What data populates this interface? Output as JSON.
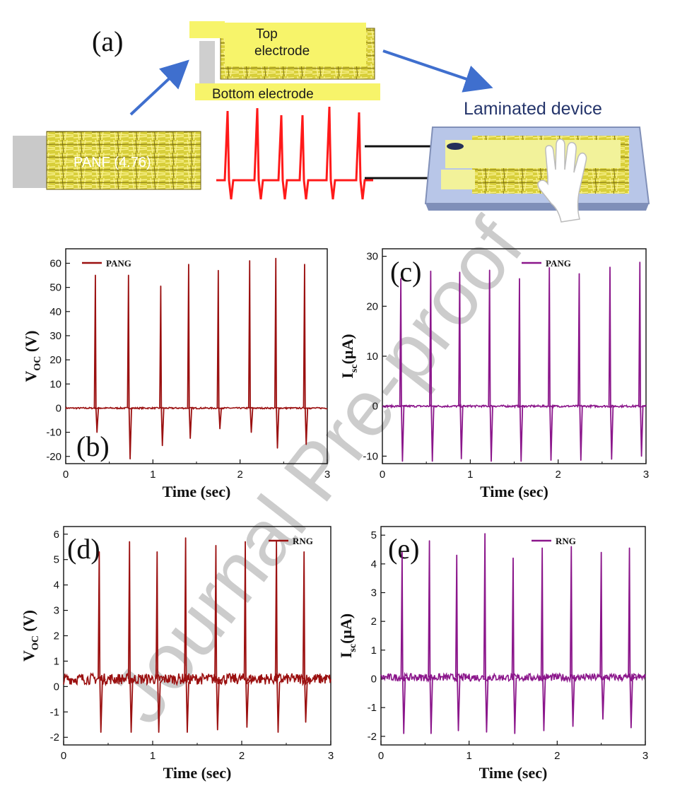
{
  "panel_a": {
    "label": "(a)",
    "top_electrode_line1": "Top",
    "top_electrode_line2": "electrode",
    "bottom_electrode": "Bottom electrode",
    "panf_label": "PANF (4.76)",
    "device_label": "Laminated device"
  },
  "watermark": "Journal Pre-proof",
  "colors": {
    "red_series": "#9b1010",
    "purple_series": "#8b168b",
    "schematic_signal": "#ff1a1a",
    "arrow": "#3f6fce",
    "electrode": "#f7f46a"
  },
  "chart_data": [
    {
      "panel": "(b)",
      "type": "line",
      "xlabel": "Time (sec)",
      "ylabel_main": "V",
      "ylabel_sub": "OC",
      "ylabel_tail": " (V)",
      "xlim": [
        0,
        3
      ],
      "ylim": [
        -23,
        66
      ],
      "xticks": [
        "0",
        "1",
        "2",
        "3"
      ],
      "yticks": [
        "-20",
        "-10",
        "0",
        "10",
        "20",
        "30",
        "40",
        "50",
        "60"
      ],
      "series": [
        {
          "name": "PANG",
          "color": "#9b1010",
          "baseline": 0,
          "noise": 0.3,
          "peaks": [
            {
              "t": 0.34,
              "pos": 55,
              "neg": -10
            },
            {
              "t": 0.72,
              "pos": 55,
              "neg": -21
            },
            {
              "t": 1.09,
              "pos": 50.5,
              "neg": -15.5
            },
            {
              "t": 1.41,
              "pos": 59.5,
              "neg": -12.5
            },
            {
              "t": 1.75,
              "pos": 57,
              "neg": -8.5
            },
            {
              "t": 2.11,
              "pos": 61,
              "neg": -10
            },
            {
              "t": 2.41,
              "pos": 62,
              "neg": -16.5
            },
            {
              "t": 2.74,
              "pos": 59.5,
              "neg": -15
            }
          ]
        }
      ]
    },
    {
      "panel": "(c)",
      "type": "line",
      "xlabel": "Time (sec)",
      "ylabel_main": "I",
      "ylabel_sub": "sc",
      "ylabel_tail": "(μA)",
      "xlim": [
        0,
        3
      ],
      "ylim": [
        -11.5,
        31.5
      ],
      "xticks": [
        "0",
        "1",
        "2",
        "3"
      ],
      "yticks": [
        "-10",
        "0",
        "10",
        "20",
        "30"
      ],
      "series": [
        {
          "name": "PANG",
          "color": "#8b168b",
          "baseline": 0,
          "noise": 0.2,
          "peaks": [
            {
              "t": 0.21,
              "pos": 25.5,
              "neg": -11
            },
            {
              "t": 0.55,
              "pos": 27,
              "neg": -11
            },
            {
              "t": 0.88,
              "pos": 26.8,
              "neg": -10.5
            },
            {
              "t": 1.22,
              "pos": 27.2,
              "neg": -11
            },
            {
              "t": 1.56,
              "pos": 25.5,
              "neg": -11
            },
            {
              "t": 1.9,
              "pos": 27.7,
              "neg": -10.8
            },
            {
              "t": 2.24,
              "pos": 26.5,
              "neg": -10.8
            },
            {
              "t": 2.59,
              "pos": 27.8,
              "neg": -10.6
            },
            {
              "t": 2.93,
              "pos": 28.8,
              "neg": -10
            }
          ]
        }
      ]
    },
    {
      "panel": "(d)",
      "type": "line",
      "xlabel": "Time (sec)",
      "ylabel_main": "V",
      "ylabel_sub": "OC",
      "ylabel_tail": " (V)",
      "xlim": [
        0,
        3
      ],
      "ylim": [
        -2.3,
        6.3
      ],
      "xticks": [
        "0",
        "1",
        "2",
        "3"
      ],
      "yticks": [
        "-2",
        "-1",
        "0",
        "1",
        "2",
        "3",
        "4",
        "5",
        "6"
      ],
      "series": [
        {
          "name": "RNG",
          "color": "#9b1010",
          "baseline": 0.3,
          "noise": 0.22,
          "peaks": [
            {
              "t": 0.4,
              "pos": 5.3,
              "neg": -1.8
            },
            {
              "t": 0.74,
              "pos": 5.7,
              "neg": -1.8
            },
            {
              "t": 1.05,
              "pos": 5.3,
              "neg": -1.8
            },
            {
              "t": 1.37,
              "pos": 5.85,
              "neg": -1.8
            },
            {
              "t": 1.71,
              "pos": 5.55,
              "neg": -1.7
            },
            {
              "t": 2.04,
              "pos": 5.7,
              "neg": -1.6
            },
            {
              "t": 2.39,
              "pos": 5.7,
              "neg": -1.8
            },
            {
              "t": 2.7,
              "pos": 5.3,
              "neg": -1.4
            }
          ]
        }
      ]
    },
    {
      "panel": "(e)",
      "type": "line",
      "xlabel": "Time (sec)",
      "ylabel_main": "I",
      "ylabel_sub": "sc",
      "ylabel_tail": "(μA)",
      "xlim": [
        0,
        3
      ],
      "ylim": [
        -2.3,
        5.3
      ],
      "xticks": [
        "0",
        "1",
        "2",
        "3"
      ],
      "yticks": [
        "-2",
        "-1",
        "0",
        "1",
        "2",
        "3",
        "4",
        "5"
      ],
      "series": [
        {
          "name": "RNG",
          "color": "#8b168b",
          "baseline": 0.05,
          "noise": 0.13,
          "peaks": [
            {
              "t": 0.24,
              "pos": 4.4,
              "neg": -1.9
            },
            {
              "t": 0.55,
              "pos": 4.8,
              "neg": -1.9
            },
            {
              "t": 0.86,
              "pos": 4.3,
              "neg": -1.8
            },
            {
              "t": 1.18,
              "pos": 5.05,
              "neg": -1.85
            },
            {
              "t": 1.5,
              "pos": 4.2,
              "neg": -1.9
            },
            {
              "t": 1.83,
              "pos": 4.55,
              "neg": -1.8
            },
            {
              "t": 2.16,
              "pos": 4.6,
              "neg": -1.65
            },
            {
              "t": 2.5,
              "pos": 4.4,
              "neg": -1.4
            },
            {
              "t": 2.82,
              "pos": 4.55,
              "neg": -1.7
            }
          ]
        }
      ]
    }
  ]
}
